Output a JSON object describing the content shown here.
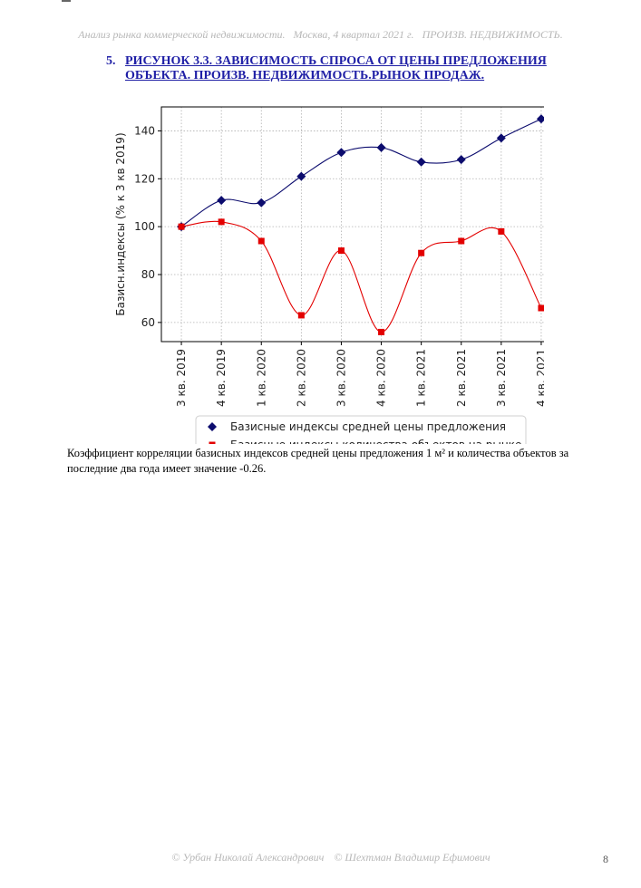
{
  "header": {
    "title": "Анализ рынка коммерческой недвижимости.",
    "location_period": "Москва,  4 квартал 2021 г.",
    "segment": "ПРОИЗВ. НЕДВИЖИМОСТЬ."
  },
  "figure": {
    "number": "5.",
    "title_line1": "РИСУНОК 3.3. ЗАВИСИМОСТЬ СПРОСА ОТ ЦЕНЫ ПРЕДЛОЖЕНИЯ",
    "title_line2": "ОБЪЕКТА.  ПРОИЗВ. НЕДВИЖИМОСТЬ.РЫНОК ПРОДАЖ."
  },
  "chart_data": {
    "type": "line",
    "categories": [
      "3 кв. 2019",
      "4 кв. 2019",
      "1 кв. 2020",
      "2 кв. 2020",
      "3 кв. 2020",
      "4 кв. 2020",
      "1 кв. 2021",
      "2 кв. 2021",
      "3 кв. 2021",
      "4 кв. 2021"
    ],
    "ylabel": "Базисн.индексы (% к 3 кв 2019)",
    "ylim": [
      52,
      150
    ],
    "yticks": [
      60,
      80,
      100,
      120,
      140
    ],
    "grid": true,
    "legend_position": "bottom",
    "series": [
      {
        "name": "Базисные индексы средней цены предложения",
        "color": "#0c0c6e",
        "marker": "diamond",
        "values": [
          100,
          111,
          110,
          121,
          131,
          133,
          127,
          128,
          137,
          145
        ]
      },
      {
        "name": "Базисные индексы количества объектов на рынке",
        "color": "#e30000",
        "marker": "square",
        "values": [
          100,
          102,
          94,
          63,
          90,
          56,
          89,
          94,
          98,
          66
        ]
      }
    ]
  },
  "text": {
    "paragraph": "Коэффициент корреляции базисных индексов средней цены предложения 1 м² и количества объектов за последние два года имеет значение -0.26."
  },
  "footer": {
    "author1": "© Урбан Николай Александрович",
    "author2": "© Шехтман Владимир Ефимович",
    "page_number": "8"
  }
}
